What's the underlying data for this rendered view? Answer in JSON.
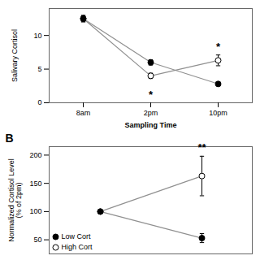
{
  "chart_data": [
    {
      "type": "line",
      "categories": [
        "8am",
        "2pm",
        "10pm"
      ],
      "xlabel": "Sampling Time",
      "ylabel": "Salivary Cortisol",
      "ylim": [
        0,
        14
      ],
      "yticks": [
        0,
        5,
        10
      ],
      "grid": false,
      "series": [
        {
          "color": "#909090",
          "marker": "open circle",
          "values": [
            12.5,
            4.0,
            6.3
          ],
          "errors": [
            0.5,
            0.4,
            0.8
          ]
        },
        {
          "color": "#909090",
          "marker": "filled circle",
          "values": [
            12.5,
            6.0,
            2.8
          ],
          "errors": [
            0.4,
            0.4,
            0.3
          ]
        }
      ],
      "annotations": [
        {
          "text": "*",
          "x": "2pm",
          "y": 1.8
        },
        {
          "text": "*",
          "x": "10pm",
          "y": 7.8
        }
      ]
    },
    {
      "type": "line",
      "title": "B",
      "categories": [
        null,
        null
      ],
      "tick_labels": "y",
      "ylabel": "Normalized Cortisol Level\n(% of 2pm)",
      "ylim": [
        25,
        215
      ],
      "yticks": [
        50,
        100,
        150,
        200
      ],
      "grid": false,
      "legend": "lower left",
      "series": [
        {
          "name": "High Cort",
          "color": "#909090",
          "marker": "open circle",
          "values": [
            100,
            163
          ],
          "errors": [
            0,
            35
          ]
        },
        {
          "name": "Low Cort",
          "color": "#909090",
          "marker": "filled circle",
          "values": [
            100,
            53
          ],
          "errors": [
            0,
            8
          ]
        }
      ],
      "annotations": [
        {
          "text": "**",
          "x": 1,
          "y": 207
        }
      ]
    }
  ]
}
